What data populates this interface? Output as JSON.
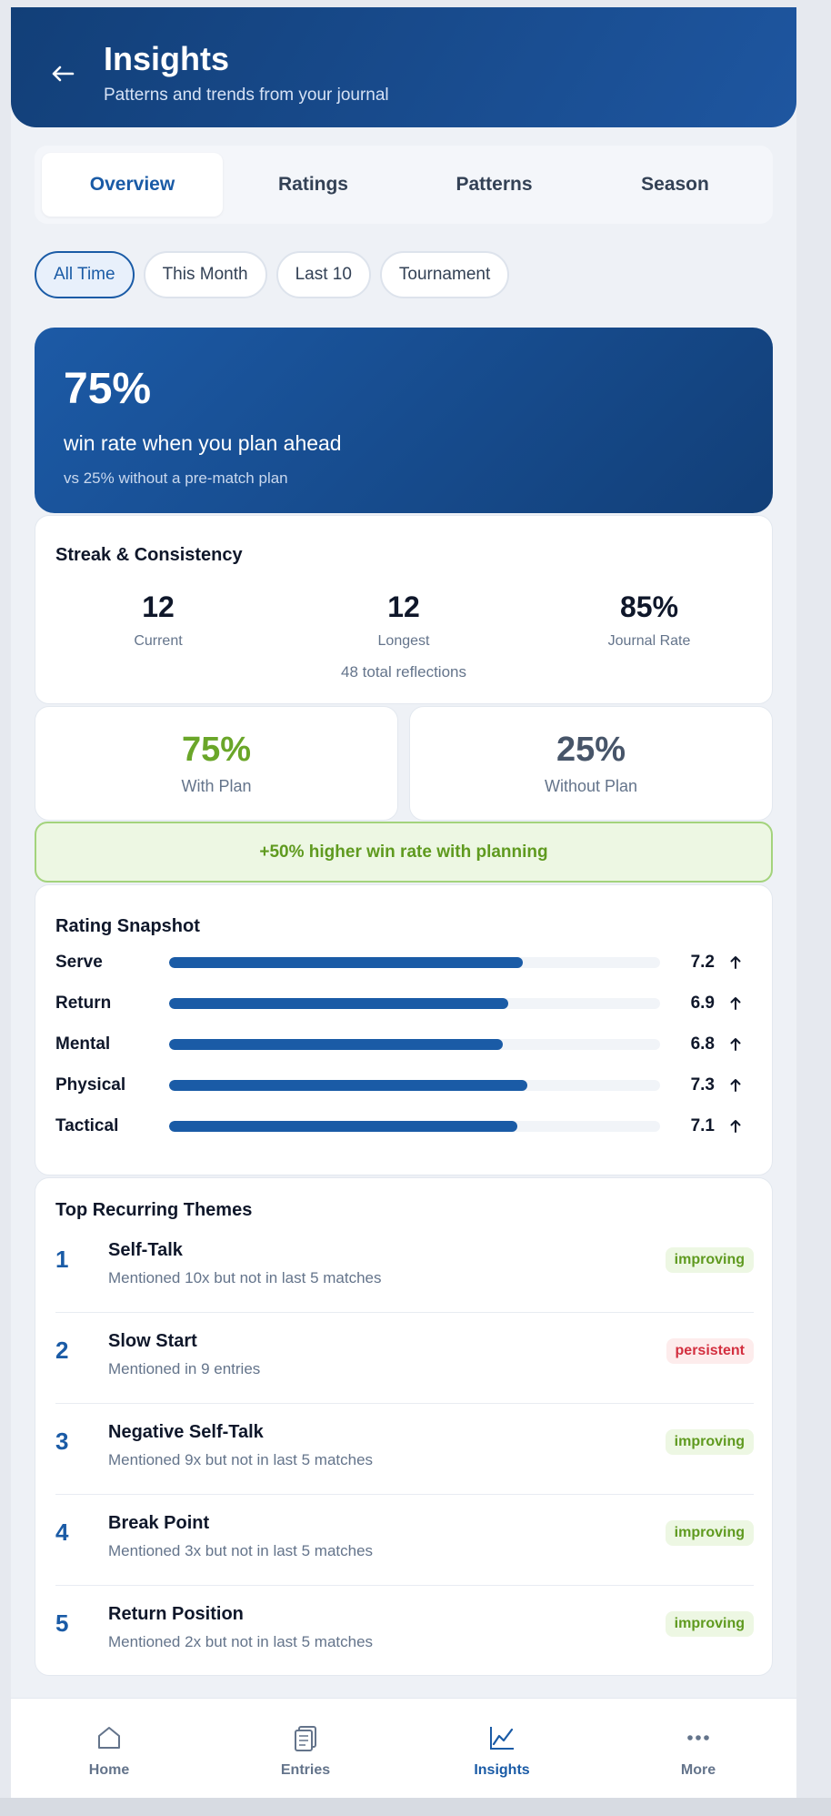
{
  "header": {
    "title": "Insights",
    "subtitle": "Patterns and trends from your journal"
  },
  "tabs": [
    {
      "label": "Overview",
      "active": true
    },
    {
      "label": "Ratings",
      "active": false
    },
    {
      "label": "Patterns",
      "active": false
    },
    {
      "label": "Season",
      "active": false
    }
  ],
  "filters": [
    {
      "label": "All Time",
      "active": true
    },
    {
      "label": "This Month",
      "active": false
    },
    {
      "label": "Last 10",
      "active": false
    },
    {
      "label": "Tournament",
      "active": false
    }
  ],
  "hero": {
    "value": "75%",
    "label": "win rate when you plan ahead",
    "sub": "vs 25% without a pre-match plan"
  },
  "streak": {
    "title": "Streak & Consistency",
    "stats": [
      {
        "value": "12",
        "label": "Current"
      },
      {
        "value": "12",
        "label": "Longest"
      },
      {
        "value": "85%",
        "label": "Journal Rate"
      }
    ],
    "total": "48 total reflections"
  },
  "plan": {
    "with": {
      "value": "75%",
      "label": "With Plan",
      "color": "#6aa629"
    },
    "without": {
      "value": "25%",
      "label": "Without Plan",
      "color": "#475569"
    },
    "banner": "+50% higher win rate with planning"
  },
  "ratings": {
    "title": "Rating Snapshot",
    "scale_max": 10,
    "items": [
      {
        "name": "Serve",
        "value": 7.2,
        "trend": "up"
      },
      {
        "name": "Return",
        "value": 6.9,
        "trend": "up"
      },
      {
        "name": "Mental",
        "value": 6.8,
        "trend": "up"
      },
      {
        "name": "Physical",
        "value": 7.3,
        "trend": "up"
      },
      {
        "name": "Tactical",
        "value": 7.1,
        "trend": "up"
      }
    ]
  },
  "themes": {
    "title": "Top Recurring Themes",
    "items": [
      {
        "rank": "1",
        "name": "Self-Talk",
        "detail": "Mentioned 10x but not in last 5 matches",
        "status": "improving"
      },
      {
        "rank": "2",
        "name": "Slow Start",
        "detail": "Mentioned in 9 entries",
        "status": "persistent"
      },
      {
        "rank": "3",
        "name": "Negative Self-Talk",
        "detail": "Mentioned 9x but not in last 5 matches",
        "status": "improving"
      },
      {
        "rank": "4",
        "name": "Break Point",
        "detail": "Mentioned 3x but not in last 5 matches",
        "status": "improving"
      },
      {
        "rank": "5",
        "name": "Return Position",
        "detail": "Mentioned 2x but not in last 5 matches",
        "status": "improving"
      }
    ]
  },
  "nav": [
    {
      "label": "Home",
      "icon": "home-icon",
      "active": false
    },
    {
      "label": "Entries",
      "icon": "entries-icon",
      "active": false
    },
    {
      "label": "Insights",
      "icon": "chart-line-icon",
      "active": true
    },
    {
      "label": "More",
      "icon": "more-dots-icon",
      "active": false
    }
  ],
  "colors": {
    "accent": "#1a5ba6",
    "header": "#123f78",
    "improving": "#5f9a1f",
    "persistent": "#d32f3f"
  }
}
